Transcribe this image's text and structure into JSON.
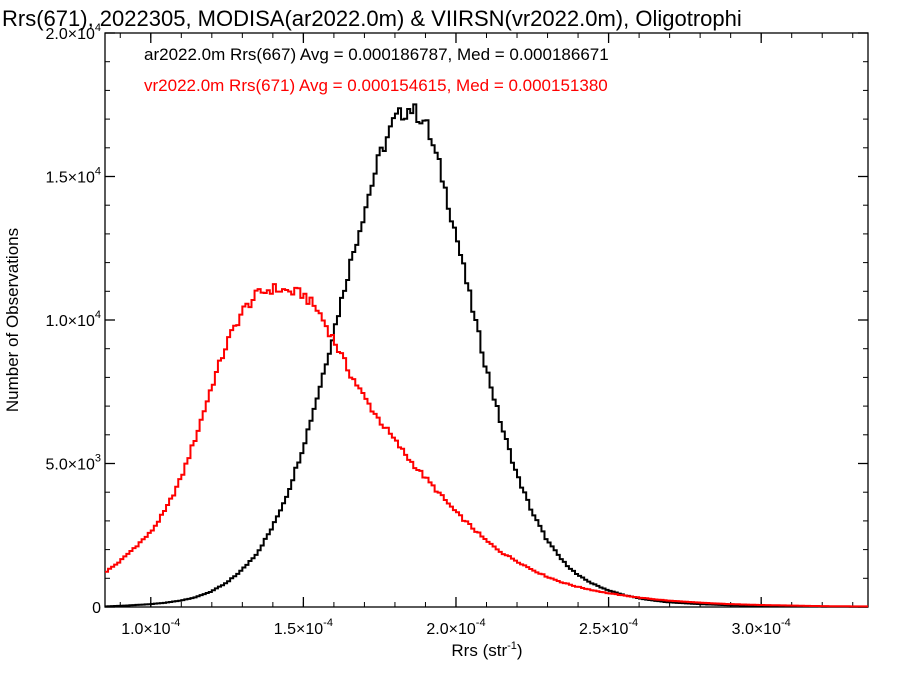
{
  "chart_data": {
    "type": "line",
    "title": "Rrs(671), 2022305, MODISA(ar2022.0m) & VIIRSN(vr2022.0m), Oligotrophi",
    "xlabel_base": "Rrs (str",
    "xlabel_exp": "-1",
    "xlabel_tail": ")",
    "ylabel": "Number of Observations",
    "xlim": [
      8.5e-05,
      0.000335
    ],
    "ylim": [
      0,
      20000
    ],
    "x_ticks": [
      {
        "value": 0.0001,
        "mantissa": "1.0×10",
        "exp": "-4"
      },
      {
        "value": 0.00015,
        "mantissa": "1.5×10",
        "exp": "-4"
      },
      {
        "value": 0.0002,
        "mantissa": "2.0×10",
        "exp": "-4"
      },
      {
        "value": 0.00025,
        "mantissa": "2.5×10",
        "exp": "-4"
      },
      {
        "value": 0.0003,
        "mantissa": "3.0×10",
        "exp": "-4"
      }
    ],
    "y_ticks": [
      {
        "value": 0,
        "mantissa": "0",
        "exp": ""
      },
      {
        "value": 5000,
        "mantissa": "5.0×10",
        "exp": "3"
      },
      {
        "value": 10000,
        "mantissa": "1.0×10",
        "exp": "4"
      },
      {
        "value": 15000,
        "mantissa": "1.5×10",
        "exp": "4"
      },
      {
        "value": 20000,
        "mantissa": "2.0×10",
        "exp": "4"
      }
    ],
    "grid": false,
    "legend_position": "top-left inside plot",
    "series": [
      {
        "name": "ar2022.0m Rrs(667) Avg = 0.000186787, Med = 0.000186671",
        "color": "#000000",
        "x": [
          8.5e-05,
          9e-05,
          9.5e-05,
          0.0001,
          0.000105,
          0.00011,
          0.000115,
          0.00012,
          0.000125,
          0.00013,
          0.000135,
          0.00014,
          0.000145,
          0.00015,
          0.000155,
          0.00016,
          0.000165,
          0.00017,
          0.000175,
          0.00018,
          0.000185,
          0.00019,
          0.000195,
          0.0002,
          0.000205,
          0.00021,
          0.000215,
          0.00022,
          0.000225,
          0.00023,
          0.000235,
          0.00024,
          0.000245,
          0.00025,
          0.000255,
          0.00026,
          0.000265,
          0.00027,
          0.00028,
          0.00029,
          0.0003,
          0.00031,
          0.00032,
          0.000335
        ],
        "y": [
          20,
          40,
          70,
          100,
          150,
          230,
          350,
          550,
          850,
          1300,
          1900,
          2800,
          4000,
          5600,
          7500,
          9600,
          11800,
          13800,
          15700,
          17000,
          17400,
          16900,
          15200,
          13000,
          10600,
          8300,
          6300,
          4600,
          3300,
          2300,
          1600,
          1100,
          800,
          580,
          420,
          300,
          220,
          160,
          100,
          60,
          40,
          25,
          15,
          8
        ]
      },
      {
        "name": "vr2022.0m Rrs(671) Avg = 0.000154615, Med = 0.000151380",
        "color": "#ff0000",
        "x": [
          8.5e-05,
          9e-05,
          9.5e-05,
          0.0001,
          0.000105,
          0.00011,
          0.000115,
          0.00012,
          0.000125,
          0.00013,
          0.000135,
          0.00014,
          0.000145,
          0.00015,
          0.000155,
          0.00016,
          0.000165,
          0.00017,
          0.000175,
          0.00018,
          0.000185,
          0.00019,
          0.000195,
          0.0002,
          0.000205,
          0.00021,
          0.000215,
          0.00022,
          0.000225,
          0.00023,
          0.000235,
          0.00024,
          0.000245,
          0.00025,
          0.000255,
          0.00026,
          0.000265,
          0.00027,
          0.00028,
          0.00029,
          0.0003,
          0.00031,
          0.00032,
          0.000335
        ],
        "y": [
          1200,
          1600,
          2100,
          2600,
          3400,
          4500,
          6000,
          7700,
          9200,
          10300,
          10900,
          11100,
          11000,
          10900,
          10300,
          9300,
          8200,
          7300,
          6500,
          5800,
          5100,
          4500,
          3900,
          3300,
          2800,
          2300,
          1900,
          1600,
          1300,
          1050,
          850,
          700,
          580,
          480,
          400,
          330,
          270,
          220,
          150,
          100,
          70,
          50,
          30,
          20
        ]
      }
    ]
  }
}
